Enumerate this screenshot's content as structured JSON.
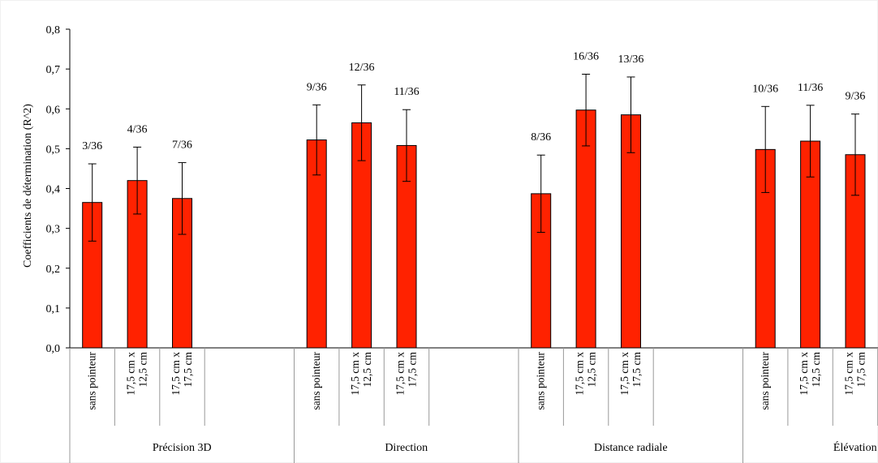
{
  "chart_data": {
    "type": "bar",
    "ylabel": "Coefficients de détermination (R^2)",
    "ylim": [
      0,
      0.8
    ],
    "yticks": [
      "0,0",
      "0,1",
      "0,2",
      "0,3",
      "0,4",
      "0,5",
      "0,6",
      "0,7",
      "0,8"
    ],
    "bar_color": "#ff2200",
    "grid": false,
    "groups": [
      {
        "name": "Précision 3D",
        "bars": [
          {
            "category": [
              "sans pointeur"
            ],
            "value": 0.365,
            "error": 0.097,
            "label": "3/36"
          },
          {
            "category": [
              "17,5 cm x",
              "12,5 cm"
            ],
            "value": 0.42,
            "error": 0.084,
            "label": "4/36"
          },
          {
            "category": [
              "17,5 cm x",
              "17,5 cm"
            ],
            "value": 0.375,
            "error": 0.09,
            "label": "7/36"
          }
        ]
      },
      {
        "name": "Direction",
        "bars": [
          {
            "category": [
              "sans pointeur"
            ],
            "value": 0.522,
            "error": 0.088,
            "label": "9/36"
          },
          {
            "category": [
              "17,5 cm x",
              "12,5 cm"
            ],
            "value": 0.565,
            "error": 0.095,
            "label": "12/36"
          },
          {
            "category": [
              "17,5 cm x",
              "17,5 cm"
            ],
            "value": 0.508,
            "error": 0.09,
            "label": "11/36"
          }
        ]
      },
      {
        "name": "Distance radiale",
        "bars": [
          {
            "category": [
              "sans pointeur"
            ],
            "value": 0.387,
            "error": 0.097,
            "label": "8/36"
          },
          {
            "category": [
              "17,5 cm x",
              "12,5 cm"
            ],
            "value": 0.597,
            "error": 0.09,
            "label": "16/36"
          },
          {
            "category": [
              "17,5 cm x",
              "17,5 cm"
            ],
            "value": 0.585,
            "error": 0.095,
            "label": "13/36"
          }
        ]
      },
      {
        "name": "Élévation",
        "bars": [
          {
            "category": [
              "sans pointeur"
            ],
            "value": 0.498,
            "error": 0.108,
            "label": "10/36"
          },
          {
            "category": [
              "17,5 cm x",
              "12,5 cm"
            ],
            "value": 0.519,
            "error": 0.09,
            "label": "11/36"
          },
          {
            "category": [
              "17,5 cm x",
              "17,5 cm"
            ],
            "value": 0.485,
            "error": 0.102,
            "label": "9/36"
          }
        ]
      }
    ]
  }
}
